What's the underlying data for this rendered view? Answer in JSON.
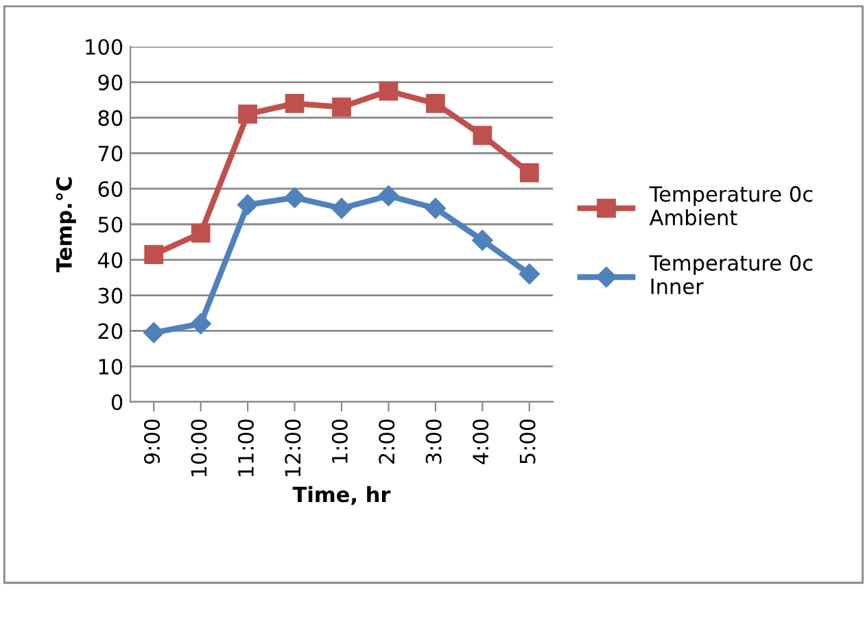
{
  "chart_data": {
    "type": "line",
    "xlabel": "Time, hr",
    "ylabel": "Temp.°C",
    "categories": [
      "9:00",
      "10:00",
      "11:00",
      "12:00",
      "1:00",
      "2:00",
      "3:00",
      "4:00",
      "5:00"
    ],
    "series": [
      {
        "name": "Temperature 0c\nAmbient",
        "color": "#c0504d",
        "marker": "square",
        "values": [
          41.5,
          47.5,
          81,
          84,
          83,
          87.5,
          84,
          75,
          64.5
        ]
      },
      {
        "name": "Temperature 0c\nInner",
        "color": "#4f81bd",
        "marker": "diamond",
        "values": [
          19.5,
          22,
          55.5,
          57.5,
          54.5,
          58,
          54.5,
          45.5,
          36
        ]
      }
    ],
    "ylim": [
      0,
      100
    ],
    "yticks": [
      0,
      10,
      20,
      30,
      40,
      50,
      60,
      70,
      80,
      90,
      100
    ],
    "grid": "y",
    "legend": "right",
    "line_style": "solid"
  }
}
